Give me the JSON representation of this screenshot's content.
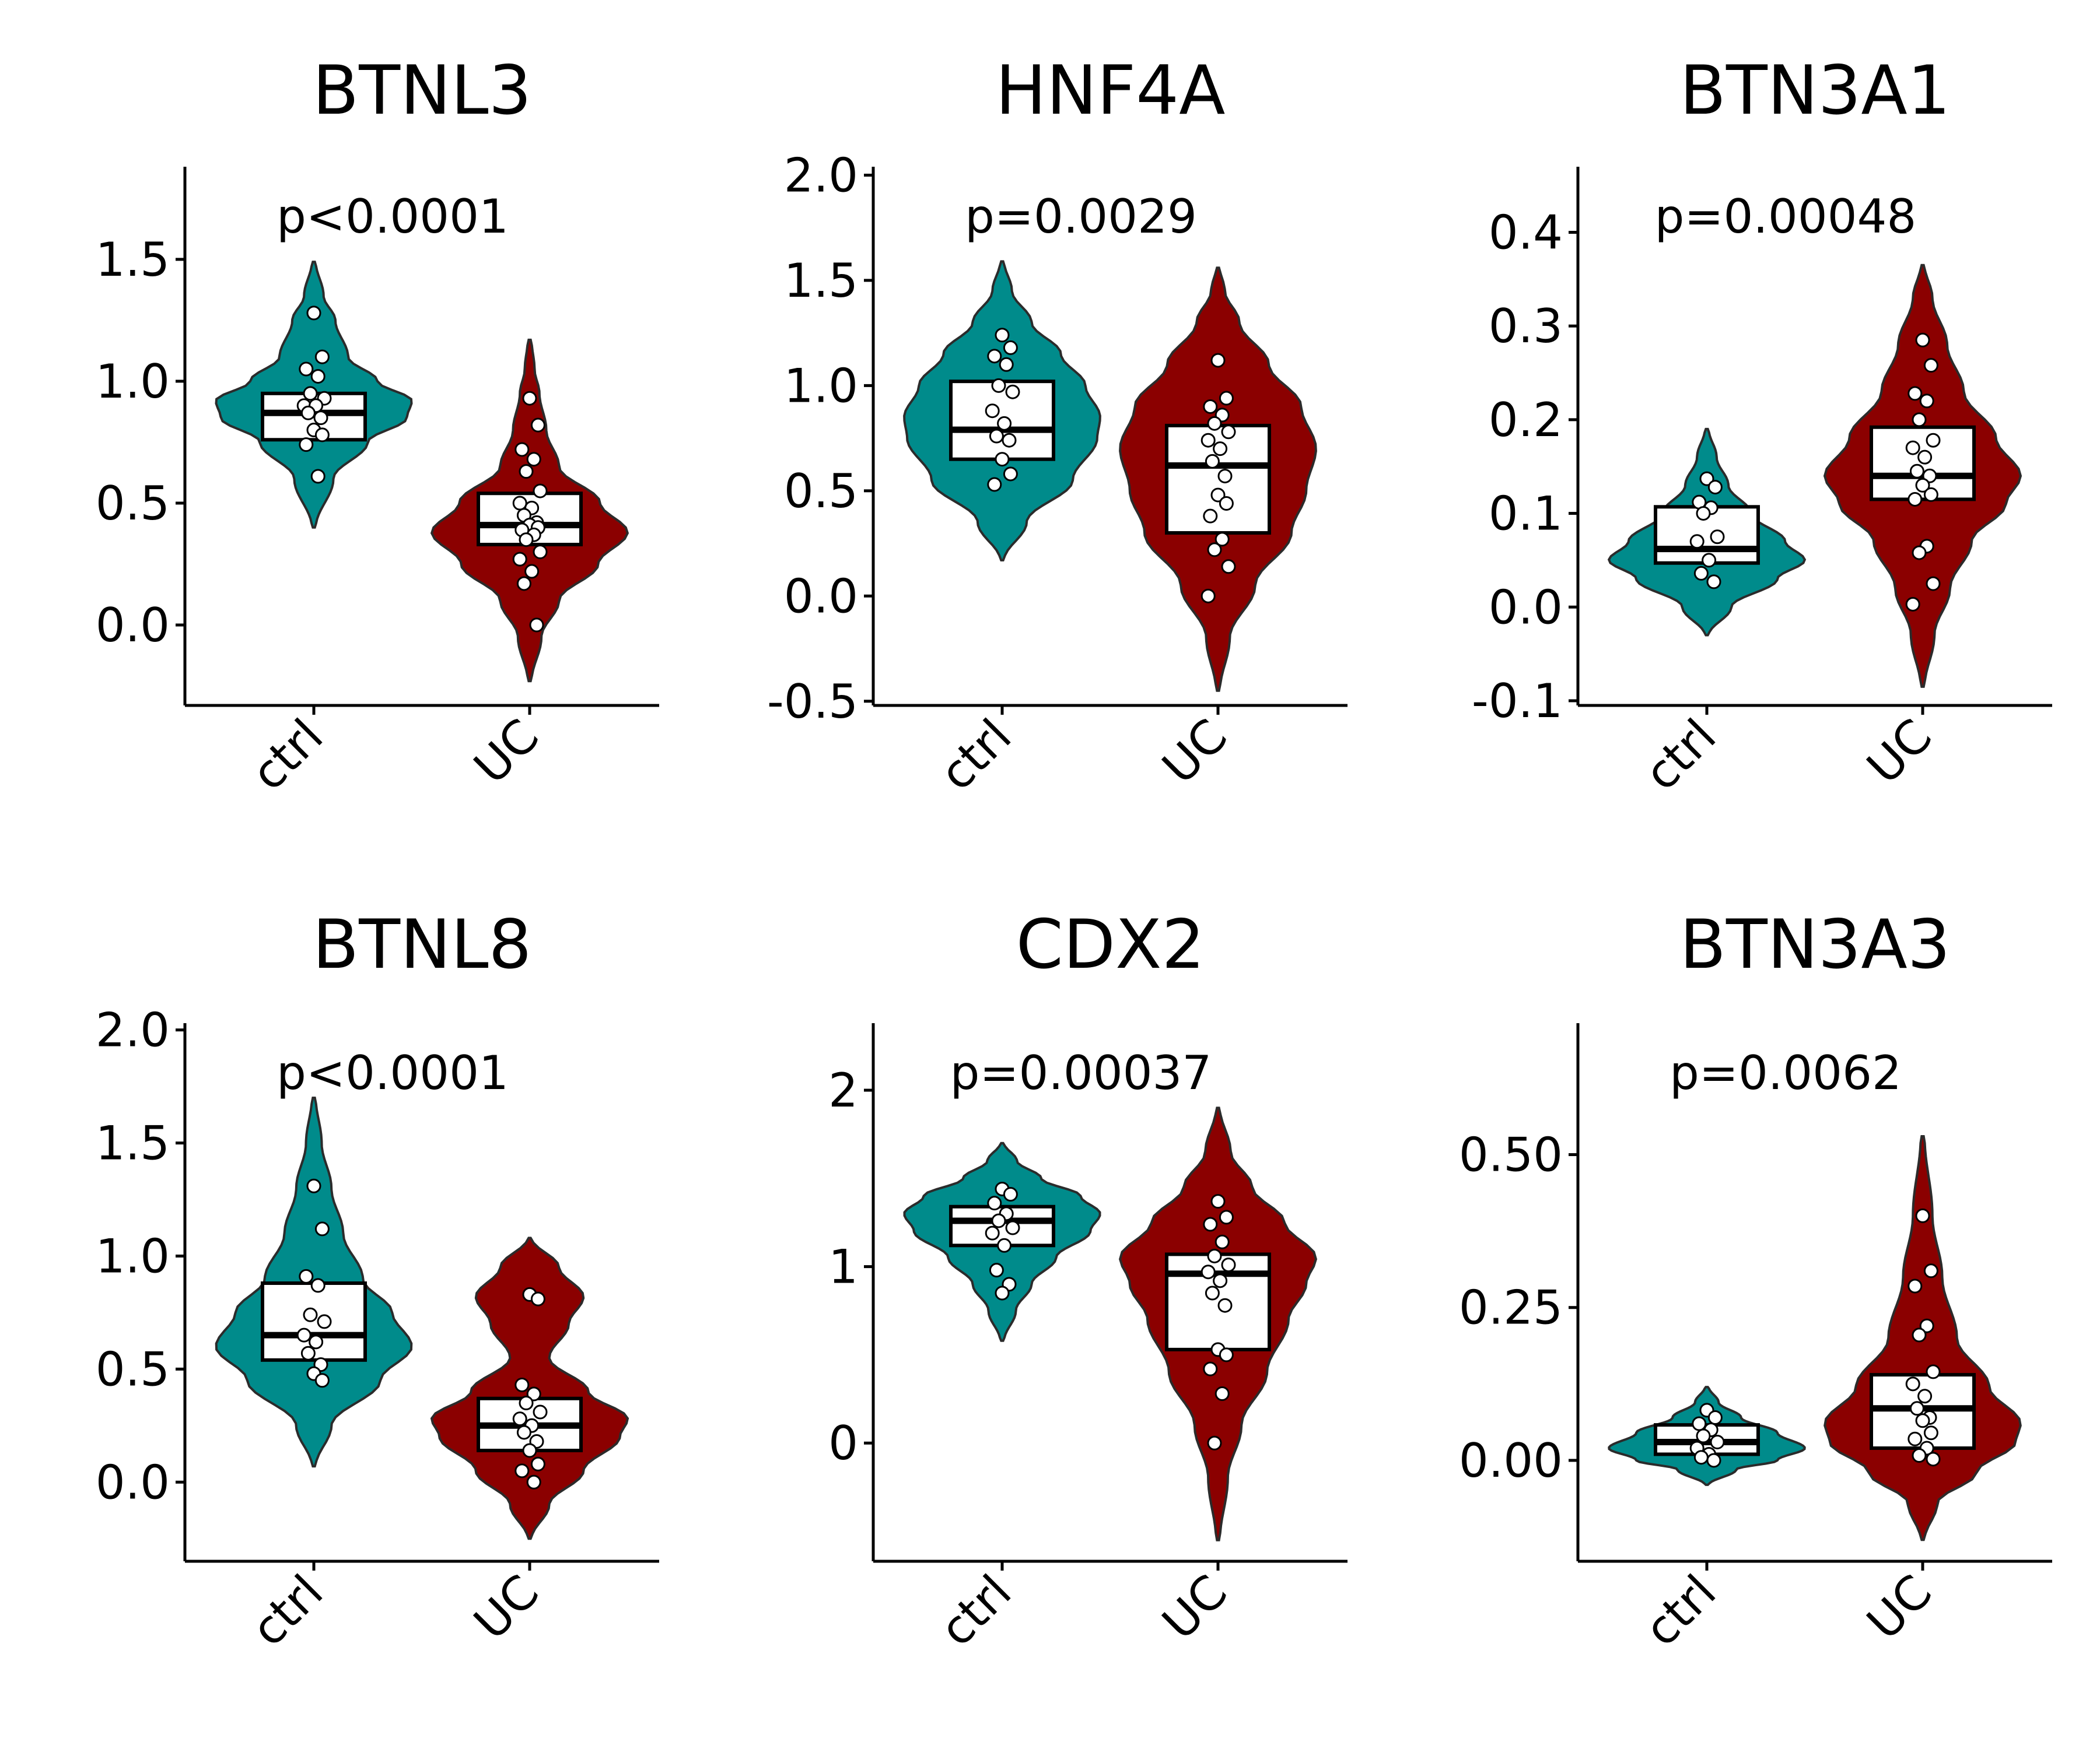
{
  "colors": {
    "ctrl": "#008B8B",
    "UC": "#8B0000"
  },
  "chart_data": [
    {
      "type": "violin",
      "title": "BTNL3",
      "annotation": "p<0.0001",
      "categories": [
        "ctrl",
        "UC"
      ],
      "ylim": [
        -0.33,
        1.88
      ],
      "yticks": [
        0.0,
        0.5,
        1.0,
        1.5
      ],
      "ytick_labels": [
        "0.0",
        "0.5",
        "1.0",
        "1.5"
      ],
      "series": [
        {
          "category": "ctrl",
          "range": [
            0.4,
            1.49
          ],
          "box": {
            "q1": 0.76,
            "median": 0.87,
            "q3": 0.95
          },
          "points": [
            1.28,
            1.1,
            1.05,
            1.02,
            0.95,
            0.93,
            0.9,
            0.9,
            0.87,
            0.85,
            0.8,
            0.78,
            0.74,
            0.61
          ],
          "density": [
            [
              0.4,
              0.02
            ],
            [
              0.6,
              0.2
            ],
            [
              0.75,
              0.55
            ],
            [
              0.85,
              0.95
            ],
            [
              0.92,
              1.0
            ],
            [
              1.0,
              0.65
            ],
            [
              1.1,
              0.35
            ],
            [
              1.25,
              0.22
            ],
            [
              1.35,
              0.1
            ],
            [
              1.49,
              0.02
            ]
          ]
        },
        {
          "category": "UC",
          "range": [
            -0.23,
            1.17
          ],
          "box": {
            "q1": 0.33,
            "median": 0.41,
            "q3": 0.54
          },
          "points": [
            0.93,
            0.82,
            0.72,
            0.68,
            0.63,
            0.55,
            0.5,
            0.48,
            0.45,
            0.42,
            0.41,
            0.4,
            0.39,
            0.37,
            0.35,
            0.3,
            0.27,
            0.22,
            0.17,
            0.0
          ],
          "density": [
            [
              -0.23,
              0.02
            ],
            [
              -0.05,
              0.12
            ],
            [
              0.1,
              0.3
            ],
            [
              0.25,
              0.7
            ],
            [
              0.38,
              1.0
            ],
            [
              0.5,
              0.72
            ],
            [
              0.65,
              0.3
            ],
            [
              0.8,
              0.17
            ],
            [
              0.95,
              0.1
            ],
            [
              1.05,
              0.05
            ],
            [
              1.17,
              0.02
            ]
          ]
        }
      ]
    },
    {
      "type": "violin",
      "title": "HNF4A",
      "annotation": "p=0.0029",
      "categories": [
        "ctrl",
        "UC"
      ],
      "ylim": [
        -0.52,
        2.04
      ],
      "yticks": [
        -0.5,
        0.0,
        0.5,
        1.0,
        1.5,
        2.0
      ],
      "ytick_labels": [
        "-0.5",
        "0.0",
        "0.5",
        "1.0",
        "1.5",
        "2.0"
      ],
      "series": [
        {
          "category": "ctrl",
          "range": [
            0.17,
            1.59
          ],
          "box": {
            "q1": 0.65,
            "median": 0.79,
            "q3": 1.02
          },
          "points": [
            1.24,
            1.18,
            1.14,
            1.1,
            1.0,
            0.97,
            0.88,
            0.82,
            0.76,
            0.74,
            0.65,
            0.58,
            0.53
          ],
          "density": [
            [
              0.17,
              0.02
            ],
            [
              0.35,
              0.25
            ],
            [
              0.55,
              0.72
            ],
            [
              0.75,
              0.97
            ],
            [
              0.85,
              1.0
            ],
            [
              1.0,
              0.85
            ],
            [
              1.15,
              0.6
            ],
            [
              1.3,
              0.3
            ],
            [
              1.45,
              0.1
            ],
            [
              1.59,
              0.02
            ]
          ]
        },
        {
          "category": "UC",
          "range": [
            -0.45,
            1.56
          ],
          "box": {
            "q1": 0.3,
            "median": 0.62,
            "q3": 0.81
          },
          "points": [
            1.12,
            0.94,
            0.9,
            0.86,
            0.82,
            0.78,
            0.74,
            0.7,
            0.64,
            0.57,
            0.48,
            0.44,
            0.38,
            0.27,
            0.22,
            0.14,
            0.0
          ],
          "density": [
            [
              -0.45,
              0.02
            ],
            [
              -0.2,
              0.12
            ],
            [
              0.05,
              0.38
            ],
            [
              0.3,
              0.75
            ],
            [
              0.5,
              0.9
            ],
            [
              0.7,
              1.0
            ],
            [
              0.9,
              0.85
            ],
            [
              1.1,
              0.52
            ],
            [
              1.3,
              0.22
            ],
            [
              1.45,
              0.07
            ],
            [
              1.56,
              0.02
            ]
          ]
        }
      ]
    },
    {
      "type": "violin",
      "title": "BTN3A1",
      "annotation": "p=0.00048",
      "categories": [
        "ctrl",
        "UC"
      ],
      "ylim": [
        -0.105,
        0.47
      ],
      "yticks": [
        -0.1,
        0.0,
        0.1,
        0.2,
        0.3,
        0.4
      ],
      "ytick_labels": [
        "-0.1",
        "0.0",
        "0.1",
        "0.2",
        "0.3",
        "0.4"
      ],
      "series": [
        {
          "category": "ctrl",
          "range": [
            -0.03,
            0.19
          ],
          "box": {
            "q1": 0.047,
            "median": 0.062,
            "q3": 0.107
          },
          "points": [
            0.137,
            0.128,
            0.112,
            0.106,
            0.1,
            0.075,
            0.07,
            0.05,
            0.036,
            0.027
          ],
          "density": [
            [
              -0.03,
              0.02
            ],
            [
              0.0,
              0.25
            ],
            [
              0.03,
              0.72
            ],
            [
              0.05,
              1.0
            ],
            [
              0.07,
              0.8
            ],
            [
              0.1,
              0.45
            ],
            [
              0.13,
              0.22
            ],
            [
              0.16,
              0.1
            ],
            [
              0.19,
              0.02
            ]
          ]
        },
        {
          "category": "UC",
          "range": [
            -0.085,
            0.365
          ],
          "box": {
            "q1": 0.115,
            "median": 0.14,
            "q3": 0.192
          },
          "points": [
            0.285,
            0.258,
            0.228,
            0.22,
            0.2,
            0.178,
            0.17,
            0.16,
            0.145,
            0.14,
            0.13,
            0.12,
            0.115,
            0.065,
            0.058,
            0.025,
            0.003
          ],
          "density": [
            [
              -0.085,
              0.02
            ],
            [
              -0.03,
              0.12
            ],
            [
              0.02,
              0.28
            ],
            [
              0.07,
              0.5
            ],
            [
              0.11,
              0.85
            ],
            [
              0.14,
              1.0
            ],
            [
              0.18,
              0.75
            ],
            [
              0.23,
              0.42
            ],
            [
              0.28,
              0.25
            ],
            [
              0.33,
              0.1
            ],
            [
              0.365,
              0.02
            ]
          ]
        }
      ]
    },
    {
      "type": "violin",
      "title": "BTNL8",
      "annotation": "p<0.0001",
      "categories": [
        "ctrl",
        "UC"
      ],
      "ylim": [
        -0.35,
        2.03
      ],
      "yticks": [
        0.0,
        0.5,
        1.0,
        1.5,
        2.0
      ],
      "ytick_labels": [
        "0.0",
        "0.5",
        "1.0",
        "1.5",
        "2.0"
      ],
      "series": [
        {
          "category": "ctrl",
          "range": [
            0.07,
            1.7
          ],
          "box": {
            "q1": 0.54,
            "median": 0.65,
            "q3": 0.88
          },
          "points": [
            1.31,
            1.12,
            0.91,
            0.87,
            0.74,
            0.71,
            0.65,
            0.62,
            0.57,
            0.52,
            0.48,
            0.45
          ],
          "density": [
            [
              0.07,
              0.02
            ],
            [
              0.25,
              0.18
            ],
            [
              0.45,
              0.68
            ],
            [
              0.6,
              1.0
            ],
            [
              0.75,
              0.8
            ],
            [
              0.9,
              0.5
            ],
            [
              1.1,
              0.3
            ],
            [
              1.3,
              0.18
            ],
            [
              1.5,
              0.08
            ],
            [
              1.7,
              0.02
            ]
          ]
        },
        {
          "category": "UC",
          "range": [
            -0.25,
            1.08
          ],
          "box": {
            "q1": 0.14,
            "median": 0.25,
            "q3": 0.37
          },
          "points": [
            0.83,
            0.81,
            0.43,
            0.39,
            0.35,
            0.31,
            0.28,
            0.25,
            0.22,
            0.18,
            0.14,
            0.08,
            0.05,
            0.0
          ],
          "density": [
            [
              -0.25,
              0.02
            ],
            [
              -0.1,
              0.2
            ],
            [
              0.05,
              0.55
            ],
            [
              0.2,
              0.92
            ],
            [
              0.28,
              1.0
            ],
            [
              0.4,
              0.6
            ],
            [
              0.55,
              0.2
            ],
            [
              0.7,
              0.4
            ],
            [
              0.82,
              0.55
            ],
            [
              0.95,
              0.3
            ],
            [
              1.08,
              0.02
            ]
          ]
        }
      ]
    },
    {
      "type": "violin",
      "title": "CDX2",
      "annotation": "p=0.00037",
      "categories": [
        "ctrl",
        "UC"
      ],
      "ylim": [
        -0.67,
        2.38
      ],
      "yticks": [
        0,
        1,
        2
      ],
      "ytick_labels": [
        "0",
        "1",
        "2"
      ],
      "series": [
        {
          "category": "ctrl",
          "range": [
            0.58,
            1.7
          ],
          "box": {
            "q1": 1.12,
            "median": 1.26,
            "q3": 1.34
          },
          "points": [
            1.44,
            1.41,
            1.36,
            1.3,
            1.26,
            1.22,
            1.19,
            1.12,
            0.98,
            0.9,
            0.85
          ],
          "density": [
            [
              0.58,
              0.02
            ],
            [
              0.75,
              0.14
            ],
            [
              0.9,
              0.3
            ],
            [
              1.05,
              0.55
            ],
            [
              1.2,
              0.9
            ],
            [
              1.3,
              1.0
            ],
            [
              1.4,
              0.8
            ],
            [
              1.5,
              0.4
            ],
            [
              1.6,
              0.15
            ],
            [
              1.7,
              0.02
            ]
          ]
        },
        {
          "category": "UC",
          "range": [
            -0.55,
            1.9
          ],
          "box": {
            "q1": 0.53,
            "median": 0.96,
            "q3": 1.07
          },
          "points": [
            1.37,
            1.28,
            1.24,
            1.14,
            1.06,
            1.01,
            0.97,
            0.92,
            0.85,
            0.78,
            0.53,
            0.5,
            0.42,
            0.28,
            0.0
          ],
          "density": [
            [
              -0.55,
              0.02
            ],
            [
              -0.2,
              0.1
            ],
            [
              0.1,
              0.24
            ],
            [
              0.4,
              0.5
            ],
            [
              0.7,
              0.72
            ],
            [
              0.9,
              0.9
            ],
            [
              1.05,
              1.0
            ],
            [
              1.25,
              0.68
            ],
            [
              1.45,
              0.35
            ],
            [
              1.65,
              0.13
            ],
            [
              1.9,
              0.02
            ]
          ]
        }
      ]
    },
    {
      "type": "violin",
      "title": "BTN3A3",
      "annotation": "p=0.0062",
      "categories": [
        "ctrl",
        "UC"
      ],
      "ylim": [
        -0.165,
        0.715
      ],
      "yticks": [
        0.0,
        0.25,
        0.5
      ],
      "ytick_labels": [
        "0.00",
        "0.25",
        "0.50"
      ],
      "series": [
        {
          "category": "ctrl",
          "range": [
            -0.04,
            0.12
          ],
          "box": {
            "q1": 0.01,
            "median": 0.03,
            "q3": 0.058
          },
          "points": [
            0.082,
            0.07,
            0.06,
            0.05,
            0.04,
            0.03,
            0.02,
            0.01,
            0.005,
            0.0
          ],
          "density": [
            [
              -0.04,
              0.02
            ],
            [
              -0.015,
              0.3
            ],
            [
              0.0,
              0.72
            ],
            [
              0.02,
              1.0
            ],
            [
              0.045,
              0.72
            ],
            [
              0.07,
              0.35
            ],
            [
              0.095,
              0.12
            ],
            [
              0.12,
              0.02
            ]
          ]
        },
        {
          "category": "UC",
          "range": [
            -0.13,
            0.53
          ],
          "box": {
            "q1": 0.02,
            "median": 0.085,
            "q3": 0.14
          },
          "points": [
            0.4,
            0.31,
            0.285,
            0.22,
            0.205,
            0.145,
            0.125,
            0.105,
            0.085,
            0.07,
            0.065,
            0.045,
            0.035,
            0.02,
            0.008,
            0.002
          ],
          "density": [
            [
              -0.13,
              0.02
            ],
            [
              -0.07,
              0.15
            ],
            [
              -0.02,
              0.55
            ],
            [
              0.03,
              0.95
            ],
            [
              0.06,
              1.0
            ],
            [
              0.12,
              0.68
            ],
            [
              0.2,
              0.35
            ],
            [
              0.3,
              0.2
            ],
            [
              0.4,
              0.1
            ],
            [
              0.53,
              0.02
            ]
          ]
        }
      ]
    }
  ]
}
